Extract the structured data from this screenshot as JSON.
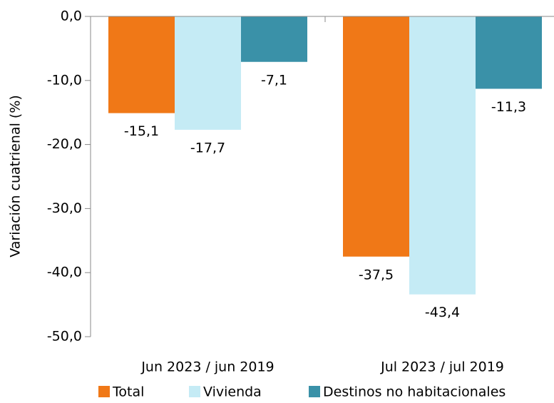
{
  "chart_data": {
    "type": "bar",
    "y_label": "Variación cuatrienal (%)",
    "categories": [
      "Jun 2023 / jun 2019",
      "Jul 2023 / jul 2019"
    ],
    "series": [
      {
        "name": "Total",
        "color": "#f07817",
        "values": [
          -15.1,
          -37.5
        ],
        "value_labels": [
          "-15,1",
          "-37,5"
        ]
      },
      {
        "name": "Vivienda",
        "color": "#c5ebf5",
        "values": [
          -17.7,
          -43.4
        ],
        "value_labels": [
          "-17,7",
          "-43,4"
        ]
      },
      {
        "name": "Destinos no habitacionales",
        "color": "#3a91a8",
        "values": [
          -7.1,
          -11.3
        ],
        "value_labels": [
          "-7,1",
          "-11,3"
        ]
      }
    ],
    "ylim": [
      -50,
      0
    ],
    "yticks": [
      {
        "value": 0,
        "label": "0,0"
      },
      {
        "value": -10,
        "label": "-10,0"
      },
      {
        "value": -20,
        "label": "-20,0"
      },
      {
        "value": -30,
        "label": "-30,0"
      },
      {
        "value": -40,
        "label": "-40,0"
      },
      {
        "value": -50,
        "label": "-50,0"
      }
    ],
    "legend": "bottom"
  }
}
